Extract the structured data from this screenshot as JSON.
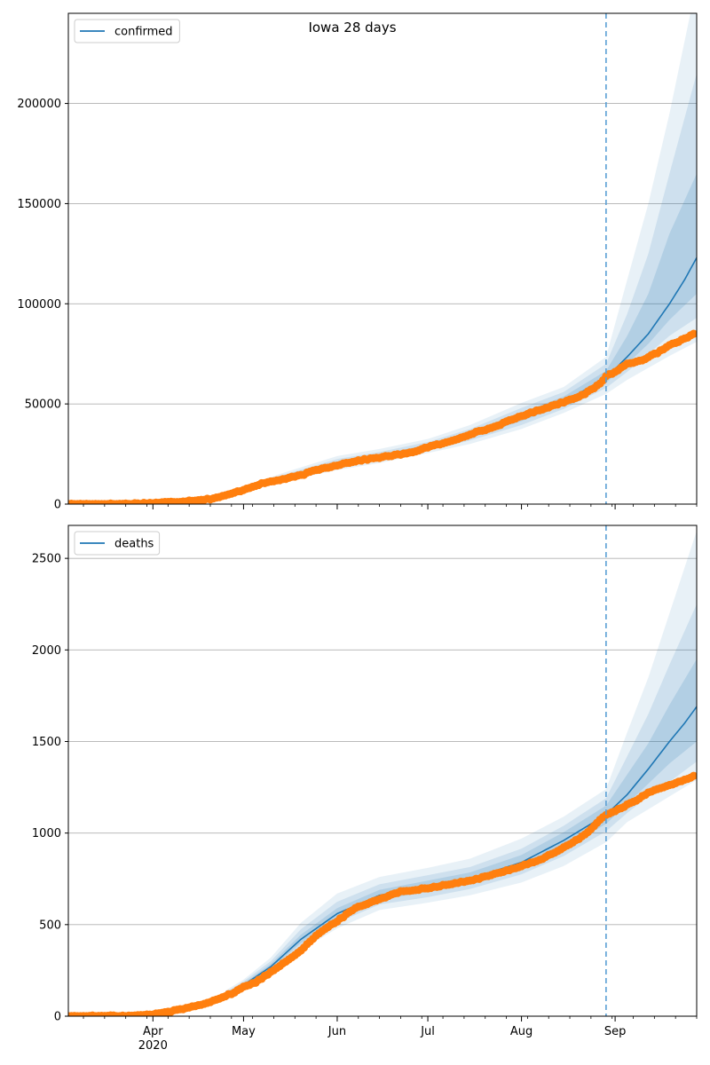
{
  "figure": {
    "title": "Iowa 28 days"
  },
  "x_axis": {
    "month_ticks": [
      {
        "date": "2020-04-01",
        "label": "Apr",
        "sublabel": "2020"
      },
      {
        "date": "2020-05-01",
        "label": "May",
        "sublabel": ""
      },
      {
        "date": "2020-06-01",
        "label": "Jun",
        "sublabel": ""
      },
      {
        "date": "2020-07-01",
        "label": "Jul",
        "sublabel": ""
      },
      {
        "date": "2020-08-01",
        "label": "Aug",
        "sublabel": ""
      },
      {
        "date": "2020-09-01",
        "label": "Sep",
        "sublabel": ""
      }
    ],
    "range": [
      "2020-03-04",
      "2020-09-28"
    ]
  },
  "colors": {
    "forecast": "#1f77b4",
    "observed": "#ff7f0e",
    "band": "#1f77b4",
    "forecast_start_line": "#5a9fd4",
    "grid": "#b0b0b0"
  },
  "chart_data": [
    {
      "type": "line",
      "legend": {
        "label": "confirmed",
        "placement": "upper-left"
      },
      "ylim": [
        0,
        245000
      ],
      "yticks": [
        0,
        50000,
        100000,
        150000,
        200000
      ],
      "grid": "horizontal",
      "forecast_start": "2020-08-29",
      "forecast_anchor": [
        "2020-08-29",
        64000
      ],
      "forecast_median": [
        [
          "2020-03-04",
          0
        ],
        [
          "2020-03-20",
          50
        ],
        [
          "2020-04-01",
          600
        ],
        [
          "2020-04-15",
          1700
        ],
        [
          "2020-04-25",
          4500
        ],
        [
          "2020-05-01",
          7500
        ],
        [
          "2020-05-10",
          11500
        ],
        [
          "2020-05-20",
          15500
        ],
        [
          "2020-06-01",
          20000
        ],
        [
          "2020-06-15",
          23500
        ],
        [
          "2020-07-01",
          28500
        ],
        [
          "2020-07-15",
          34500
        ],
        [
          "2020-08-01",
          43500
        ],
        [
          "2020-08-15",
          51000
        ],
        [
          "2020-08-29",
          63000
        ],
        [
          "2020-09-05",
          73500
        ],
        [
          "2020-09-12",
          85000
        ],
        [
          "2020-09-19",
          100000
        ],
        [
          "2020-09-24",
          112000
        ],
        [
          "2020-09-28",
          123000
        ]
      ],
      "forecast_bands": [
        {
          "level": "outer",
          "points": [
            [
              "2020-04-20",
              2500,
              3500
            ],
            [
              "2020-05-01",
              6500,
              9000
            ],
            [
              "2020-05-15",
              11500,
              16000
            ],
            [
              "2020-06-01",
              17000,
              24000
            ],
            [
              "2020-06-15",
              20500,
              27500
            ],
            [
              "2020-07-01",
              25500,
              32500
            ],
            [
              "2020-07-15",
              30000,
              39500
            ],
            [
              "2020-08-01",
              37500,
              50500
            ],
            [
              "2020-08-15",
              45500,
              58500
            ],
            [
              "2020-08-29",
              55000,
              73500
            ],
            [
              "2020-09-05",
              62000,
              112000
            ],
            [
              "2020-09-12",
              68000,
              150000
            ],
            [
              "2020-09-19",
              74000,
              195000
            ],
            [
              "2020-09-28",
              81000,
              260000
            ]
          ]
        },
        {
          "level": "middle",
          "points": [
            [
              "2020-04-20",
              2700,
              3300
            ],
            [
              "2020-05-01",
              6900,
              8400
            ],
            [
              "2020-05-15",
              12300,
              15000
            ],
            [
              "2020-06-01",
              18200,
              22500
            ],
            [
              "2020-06-15",
              21700,
              26000
            ],
            [
              "2020-07-01",
              26700,
              31000
            ],
            [
              "2020-07-15",
              31800,
              37500
            ],
            [
              "2020-08-01",
              39500,
              48000
            ],
            [
              "2020-08-15",
              47500,
              56000
            ],
            [
              "2020-08-29",
              58000,
              70000
            ],
            [
              "2020-09-05",
              66000,
              95000
            ],
            [
              "2020-09-12",
              75000,
              125000
            ],
            [
              "2020-09-19",
              84000,
              165000
            ],
            [
              "2020-09-28",
              93000,
              215000
            ]
          ]
        },
        {
          "level": "inner",
          "points": [
            [
              "2020-04-20",
              2900,
              3150
            ],
            [
              "2020-05-01",
              7200,
              7900
            ],
            [
              "2020-05-15",
              12900,
              14200
            ],
            [
              "2020-06-01",
              19200,
              21200
            ],
            [
              "2020-06-15",
              22700,
              24700
            ],
            [
              "2020-07-01",
              27600,
              29800
            ],
            [
              "2020-07-15",
              33200,
              36000
            ],
            [
              "2020-08-01",
              41400,
              45800
            ],
            [
              "2020-08-15",
              49300,
              53700
            ],
            [
              "2020-08-29",
              60500,
              66500
            ],
            [
              "2020-09-05",
              70000,
              84000
            ],
            [
              "2020-09-12",
              80000,
              105000
            ],
            [
              "2020-09-19",
              92000,
              135000
            ],
            [
              "2020-09-28",
              105000,
              165000
            ]
          ]
        }
      ],
      "observed": [
        [
          "2020-03-04",
          0
        ],
        [
          "2020-03-20",
          50
        ],
        [
          "2020-04-01",
          550
        ],
        [
          "2020-04-10",
          1300
        ],
        [
          "2020-04-20",
          2600
        ],
        [
          "2020-04-25",
          4200
        ],
        [
          "2020-05-01",
          7200
        ],
        [
          "2020-05-06",
          9800
        ],
        [
          "2020-05-10",
          11200
        ],
        [
          "2020-05-15",
          12700
        ],
        [
          "2020-05-20",
          14400
        ],
        [
          "2020-05-25",
          17000
        ],
        [
          "2020-06-01",
          19500
        ],
        [
          "2020-06-07",
          21500
        ],
        [
          "2020-06-15",
          23300
        ],
        [
          "2020-06-25",
          25500
        ],
        [
          "2020-07-01",
          28500
        ],
        [
          "2020-07-08",
          31000
        ],
        [
          "2020-07-15",
          35000
        ],
        [
          "2020-07-22",
          38000
        ],
        [
          "2020-08-01",
          44000
        ],
        [
          "2020-08-08",
          47500
        ],
        [
          "2020-08-15",
          51000
        ],
        [
          "2020-08-22",
          55000
        ],
        [
          "2020-08-27",
          60000
        ],
        [
          "2020-08-29",
          64000
        ],
        [
          "2020-09-01",
          66000
        ],
        [
          "2020-09-05",
          70000
        ],
        [
          "2020-09-10",
          72000
        ],
        [
          "2020-09-15",
          75500
        ],
        [
          "2020-09-20",
          80000
        ],
        [
          "2020-09-25",
          83000
        ],
        [
          "2020-09-27",
          85000
        ]
      ]
    },
    {
      "type": "line",
      "legend": {
        "label": "deaths",
        "placement": "upper-left"
      },
      "ylim": [
        0,
        2680
      ],
      "yticks": [
        0,
        500,
        1000,
        1500,
        2000,
        2500
      ],
      "grid": "horizontal",
      "forecast_start": "2020-08-29",
      "forecast_anchor": [
        "2020-08-29",
        1110
      ],
      "forecast_median": [
        [
          "2020-03-04",
          0
        ],
        [
          "2020-03-25",
          3
        ],
        [
          "2020-04-01",
          10
        ],
        [
          "2020-04-15",
          50
        ],
        [
          "2020-04-25",
          110
        ],
        [
          "2020-05-01",
          170
        ],
        [
          "2020-05-10",
          270
        ],
        [
          "2020-05-20",
          420
        ],
        [
          "2020-06-01",
          560
        ],
        [
          "2020-06-15",
          660
        ],
        [
          "2020-07-01",
          710
        ],
        [
          "2020-07-15",
          750
        ],
        [
          "2020-08-01",
          840
        ],
        [
          "2020-08-15",
          960
        ],
        [
          "2020-08-29",
          1100
        ],
        [
          "2020-09-05",
          1210
        ],
        [
          "2020-09-12",
          1350
        ],
        [
          "2020-09-19",
          1500
        ],
        [
          "2020-09-24",
          1600
        ],
        [
          "2020-09-28",
          1690
        ]
      ],
      "forecast_bands": [
        {
          "level": "outer",
          "points": [
            [
              "2020-04-25",
              95,
              140
            ],
            [
              "2020-05-01",
              150,
              200
            ],
            [
              "2020-05-10",
              230,
              320
            ],
            [
              "2020-05-20",
              360,
              510
            ],
            [
              "2020-06-01",
              480,
              670
            ],
            [
              "2020-06-15",
              580,
              760
            ],
            [
              "2020-07-01",
              620,
              810
            ],
            [
              "2020-07-15",
              660,
              860
            ],
            [
              "2020-08-01",
              730,
              970
            ],
            [
              "2020-08-15",
              820,
              1090
            ],
            [
              "2020-08-29",
              950,
              1240
            ],
            [
              "2020-09-05",
              1060,
              1550
            ],
            [
              "2020-09-12",
              1130,
              1850
            ],
            [
              "2020-09-19",
              1200,
              2200
            ],
            [
              "2020-09-28",
              1290,
              2650
            ]
          ]
        },
        {
          "level": "middle",
          "points": [
            [
              "2020-04-25",
              100,
              130
            ],
            [
              "2020-05-01",
              158,
              190
            ],
            [
              "2020-05-10",
              245,
              300
            ],
            [
              "2020-05-20",
              385,
              475
            ],
            [
              "2020-06-01",
              510,
              625
            ],
            [
              "2020-06-15",
              610,
              720
            ],
            [
              "2020-07-01",
              650,
              770
            ],
            [
              "2020-07-15",
              695,
              815
            ],
            [
              "2020-08-01",
              775,
              915
            ],
            [
              "2020-08-15",
              875,
              1040
            ],
            [
              "2020-08-29",
              1010,
              1190
            ],
            [
              "2020-09-05",
              1110,
              1420
            ],
            [
              "2020-09-12",
              1200,
              1650
            ],
            [
              "2020-09-19",
              1280,
              1920
            ],
            [
              "2020-09-28",
              1390,
              2250
            ]
          ]
        },
        {
          "level": "inner",
          "points": [
            [
              "2020-04-25",
              105,
              120
            ],
            [
              "2020-05-01",
              163,
              180
            ],
            [
              "2020-05-10",
              258,
              285
            ],
            [
              "2020-05-20",
              400,
              445
            ],
            [
              "2020-06-01",
              535,
              590
            ],
            [
              "2020-06-15",
              635,
              690
            ],
            [
              "2020-07-01",
              680,
              740
            ],
            [
              "2020-07-15",
              720,
              785
            ],
            [
              "2020-08-01",
              805,
              880
            ],
            [
              "2020-08-15",
              915,
              1005
            ],
            [
              "2020-08-29",
              1050,
              1150
            ],
            [
              "2020-09-05",
              1160,
              1320
            ],
            [
              "2020-09-12",
              1270,
              1490
            ],
            [
              "2020-09-19",
              1380,
              1700
            ],
            [
              "2020-09-28",
              1500,
              1950
            ]
          ]
        }
      ],
      "observed": [
        [
          "2020-03-04",
          0
        ],
        [
          "2020-03-25",
          2
        ],
        [
          "2020-04-01",
          10
        ],
        [
          "2020-04-08",
          30
        ],
        [
          "2020-04-15",
          55
        ],
        [
          "2020-04-22",
          90
        ],
        [
          "2020-04-28",
          130
        ],
        [
          "2020-05-01",
          160
        ],
        [
          "2020-05-05",
          185
        ],
        [
          "2020-05-10",
          240
        ],
        [
          "2020-05-15",
          300
        ],
        [
          "2020-05-20",
          360
        ],
        [
          "2020-05-25",
          440
        ],
        [
          "2020-06-01",
          520
        ],
        [
          "2020-06-07",
          590
        ],
        [
          "2020-06-15",
          640
        ],
        [
          "2020-06-22",
          680
        ],
        [
          "2020-07-01",
          700
        ],
        [
          "2020-07-08",
          720
        ],
        [
          "2020-07-15",
          740
        ],
        [
          "2020-07-22",
          770
        ],
        [
          "2020-08-01",
          820
        ],
        [
          "2020-08-08",
          860
        ],
        [
          "2020-08-15",
          920
        ],
        [
          "2020-08-22",
          990
        ],
        [
          "2020-08-27",
          1070
        ],
        [
          "2020-08-29",
          1100
        ],
        [
          "2020-09-02",
          1130
        ],
        [
          "2020-09-07",
          1170
        ],
        [
          "2020-09-12",
          1220
        ],
        [
          "2020-09-17",
          1250
        ],
        [
          "2020-09-22",
          1280
        ],
        [
          "2020-09-27",
          1310
        ]
      ]
    }
  ]
}
